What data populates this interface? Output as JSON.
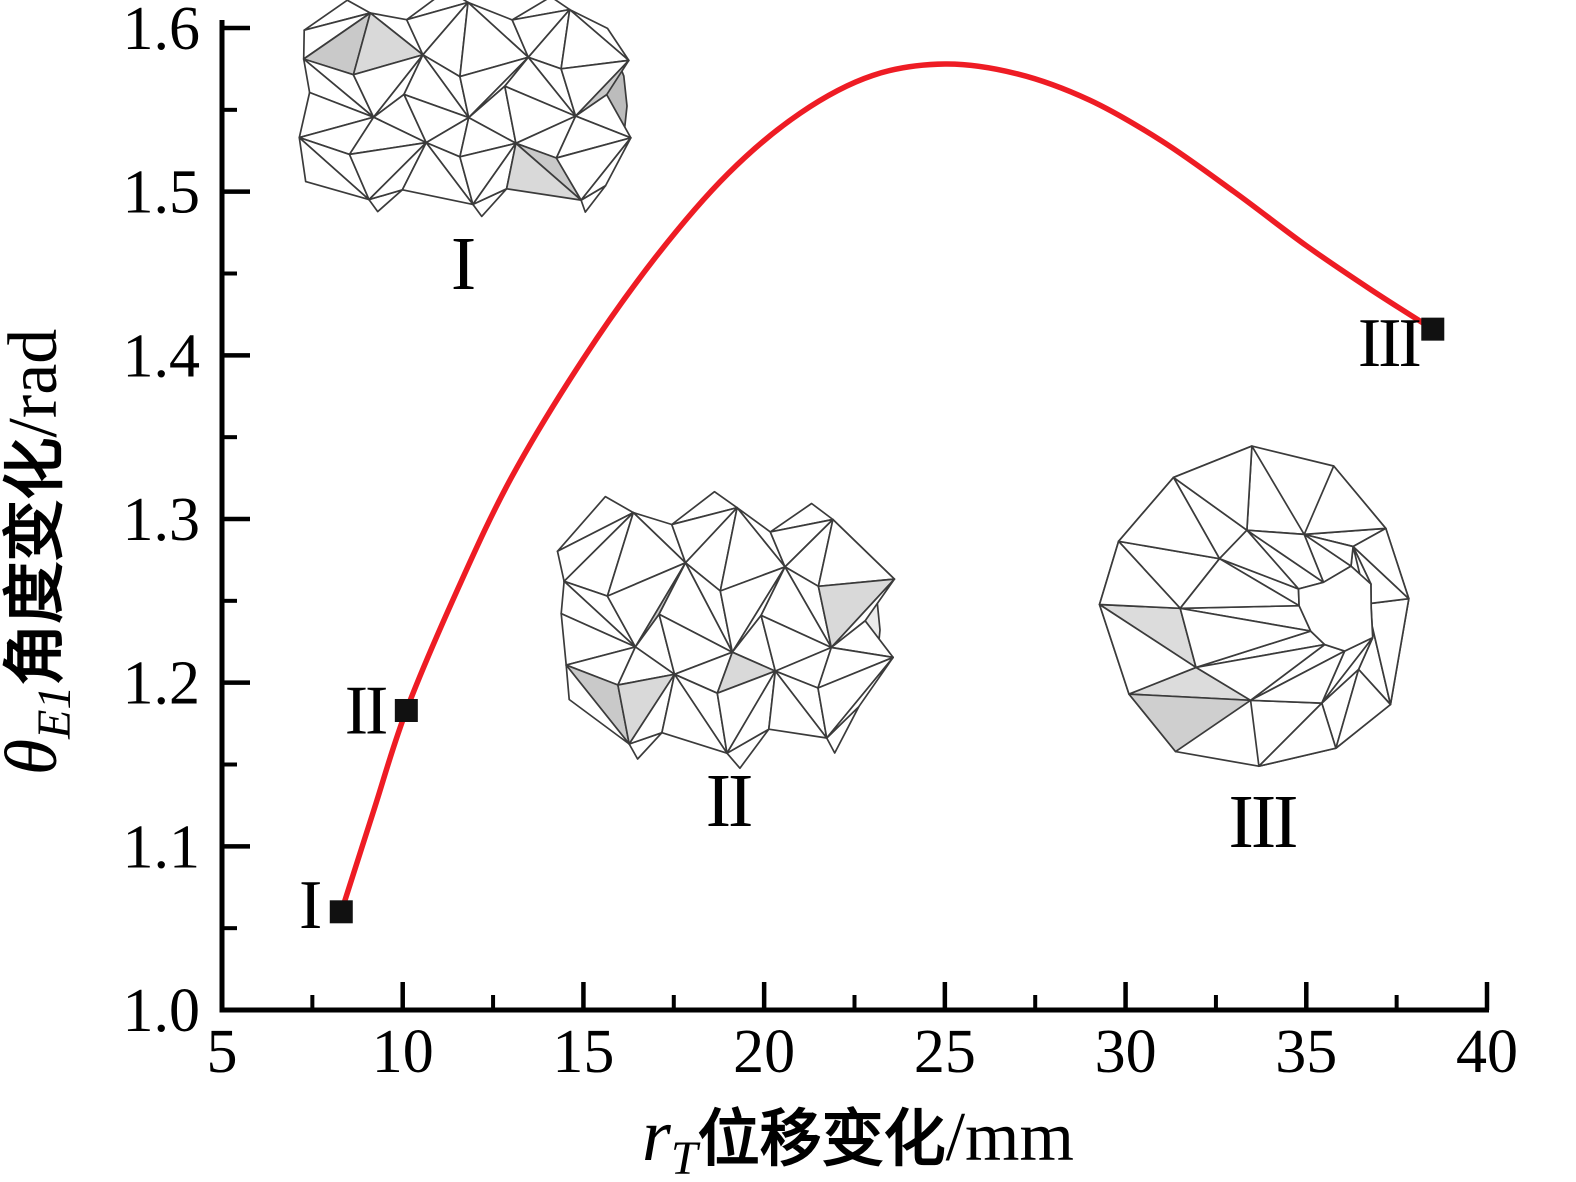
{
  "chart_data": {
    "type": "line",
    "xlabel": "rT位移变化/mm",
    "ylabel": "θE1角度变化/rad",
    "xlabel_parts": {
      "var": "r",
      "sub": "T",
      "label": "位移变化",
      "unit": "/mm"
    },
    "ylabel_parts": {
      "var": "θ",
      "sub": "E1",
      "label": "角度变化",
      "unit": "/rad"
    },
    "xlim": [
      5,
      40
    ],
    "ylim": [
      1.0,
      1.6
    ],
    "grid": false,
    "legend": "none",
    "line_color": "#ee1c24",
    "marker_color": "#111111",
    "x_ticks": [
      {
        "v": 5,
        "label": "5"
      },
      {
        "v": 10,
        "label": "10"
      },
      {
        "v": 15,
        "label": "15"
      },
      {
        "v": 20,
        "label": "20"
      },
      {
        "v": 25,
        "label": "25"
      },
      {
        "v": 30,
        "label": "30"
      },
      {
        "v": 35,
        "label": "35"
      },
      {
        "v": 40,
        "label": "40"
      }
    ],
    "x_minor_ticks": [
      7.5,
      12.5,
      17.5,
      22.5,
      27.5,
      32.5,
      37.5
    ],
    "y_ticks": [
      {
        "v": 1.0,
        "label": "1.0"
      },
      {
        "v": 1.1,
        "label": "1.1"
      },
      {
        "v": 1.2,
        "label": "1.2"
      },
      {
        "v": 1.3,
        "label": "1.3"
      },
      {
        "v": 1.4,
        "label": "1.4"
      },
      {
        "v": 1.5,
        "label": "1.5"
      },
      {
        "v": 1.6,
        "label": "1.6"
      }
    ],
    "y_minor_ticks": [
      1.05,
      1.15,
      1.25,
      1.35,
      1.45,
      1.55
    ],
    "series": [
      {
        "name": "theta_E1 vs r_T",
        "points": [
          [
            8.3,
            1.06
          ],
          [
            9.2,
            1.122
          ],
          [
            10.1,
            1.183
          ],
          [
            11.5,
            1.256
          ],
          [
            13,
            1.325
          ],
          [
            15,
            1.398
          ],
          [
            17,
            1.46
          ],
          [
            19,
            1.511
          ],
          [
            21,
            1.548
          ],
          [
            23,
            1.571
          ],
          [
            25,
            1.578
          ],
          [
            27,
            1.572
          ],
          [
            29,
            1.556
          ],
          [
            31,
            1.531
          ],
          [
            33,
            1.5
          ],
          [
            35,
            1.467
          ],
          [
            36.8,
            1.44
          ],
          [
            38.5,
            1.416
          ]
        ]
      }
    ],
    "markers": [
      {
        "label": "I",
        "x": 8.3,
        "y": 1.06
      },
      {
        "label": "II",
        "x": 10.1,
        "y": 1.183
      },
      {
        "label": "III",
        "x": 38.5,
        "y": 1.416
      }
    ],
    "insets": [
      {
        "label": "I",
        "description": "origami-tube-expanded"
      },
      {
        "label": "II",
        "description": "origami-tube-partially-folded"
      },
      {
        "label": "III",
        "description": "origami-disc-fully-folded"
      }
    ]
  }
}
